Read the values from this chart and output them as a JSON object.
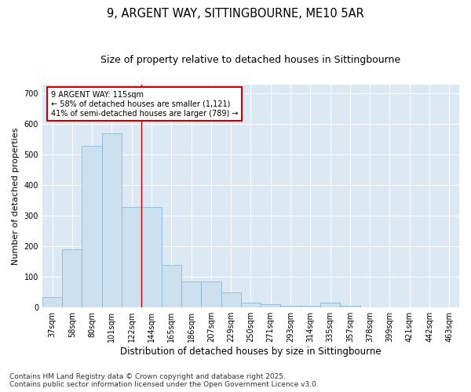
{
  "title1": "9, ARGENT WAY, SITTINGBOURNE, ME10 5AR",
  "title2": "Size of property relative to detached houses in Sittingbourne",
  "xlabel": "Distribution of detached houses by size in Sittingbourne",
  "ylabel": "Number of detached properties",
  "categories": [
    "37sqm",
    "58sqm",
    "80sqm",
    "101sqm",
    "122sqm",
    "144sqm",
    "165sqm",
    "186sqm",
    "207sqm",
    "229sqm",
    "250sqm",
    "271sqm",
    "293sqm",
    "314sqm",
    "335sqm",
    "357sqm",
    "378sqm",
    "399sqm",
    "421sqm",
    "442sqm",
    "463sqm"
  ],
  "values": [
    35,
    190,
    530,
    570,
    330,
    330,
    140,
    85,
    85,
    50,
    15,
    10,
    5,
    5,
    15,
    5,
    0,
    0,
    0,
    0,
    0
  ],
  "bar_color": "#cce0ef",
  "bar_edge_color": "#8ab8d4",
  "vline_x": 4.5,
  "vline_color": "#cc0000",
  "annotation_text": "9 ARGENT WAY: 115sqm\n← 58% of detached houses are smaller (1,121)\n41% of semi-detached houses are larger (789) →",
  "annotation_box_color": "#ffffff",
  "annotation_box_edge": "#cc0000",
  "ylim": [
    0,
    730
  ],
  "yticks": [
    0,
    100,
    200,
    300,
    400,
    500,
    600,
    700
  ],
  "background_color": "#dde8f5",
  "footer_text": "Contains HM Land Registry data © Crown copyright and database right 2025.\nContains public sector information licensed under the Open Government Licence v3.0.",
  "title_fontsize": 10.5,
  "subtitle_fontsize": 9,
  "xlabel_fontsize": 8.5,
  "ylabel_fontsize": 8,
  "tick_fontsize": 7,
  "footer_fontsize": 6.5,
  "ann_fontsize": 7
}
